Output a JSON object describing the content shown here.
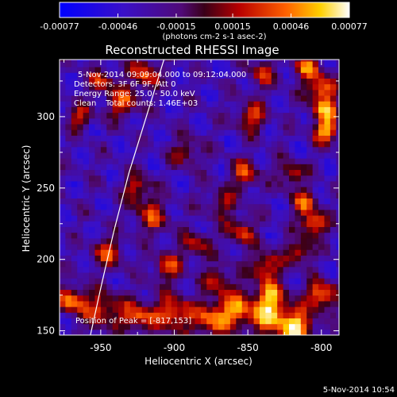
{
  "colorbar": {
    "tick_labels": [
      "-0.00077",
      "-0.00046",
      "-0.00015",
      "0.00015",
      "0.00046",
      "0.00077"
    ],
    "tick_values": [
      -0.00077,
      -0.00046,
      -0.00015,
      0.00015,
      0.00046,
      0.00077
    ],
    "range": [
      -0.00077,
      0.00077
    ],
    "units_label": "(photons cm-2 s-1 asec-2)",
    "colormap": "blue-purple-red-orange-yellow-white"
  },
  "chart_data": {
    "type": "heatmap",
    "title": "Reconstructed RHESSI Image",
    "xlabel": "Heliocentric X (arcsec)",
    "ylabel": "Heliocentric Y (arcsec)",
    "xlim": [
      -978,
      -788
    ],
    "ylim": [
      147,
      340
    ],
    "x_ticks": [
      -950,
      -900,
      -850,
      -800
    ],
    "y_ticks": [
      150,
      200,
      250,
      300
    ],
    "annotations": [
      "5-Nov-2014 09:09:04.000 to 09:12:04.000",
      "Detectors: 3F 6F 9F, Att 0",
      "Energy Range: 25.0 - 50.0 keV",
      "Clean",
      "Total counts: 1.46E+03"
    ],
    "peak_label": "Position of Peak = [-817,153]",
    "peak": [
      -817,
      153
    ],
    "limb_curve": [
      [
        -957,
        147
      ],
      [
        -950,
        180
      ],
      [
        -941,
        220
      ],
      [
        -931,
        260
      ],
      [
        -919,
        300
      ],
      [
        -907,
        340
      ]
    ]
  },
  "footer": {
    "timestamp": "5-Nov-2014 10:54"
  },
  "colors": {
    "background": "#000000",
    "text": "#ffffff"
  }
}
